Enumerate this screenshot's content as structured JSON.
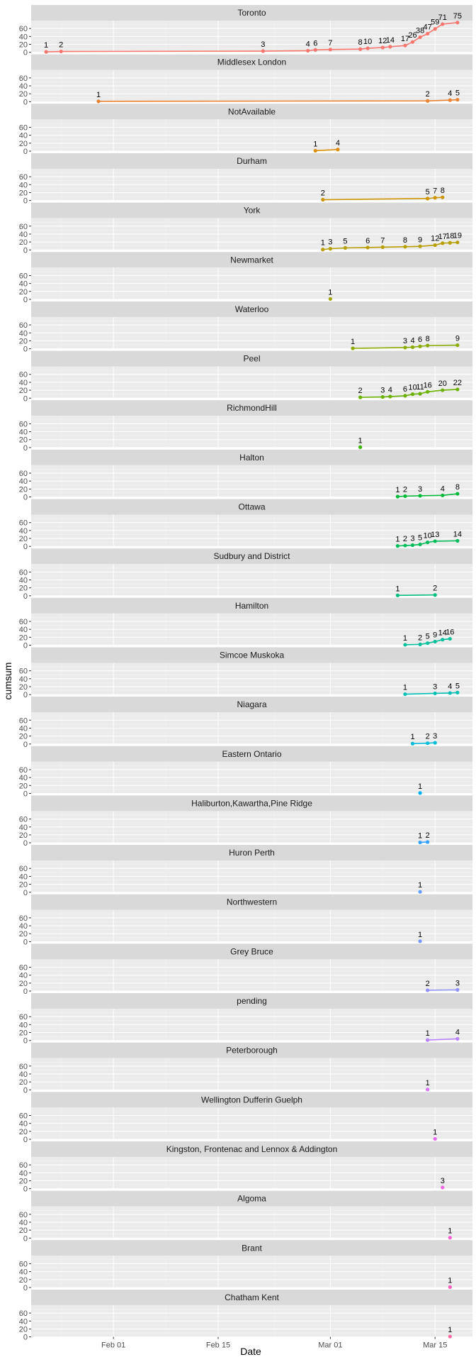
{
  "chart_data": {
    "type": "line",
    "title": "",
    "xlabel": "Date",
    "ylabel": "cumsum",
    "grid": true,
    "facet_layout": "single-column",
    "legend": "none",
    "x_domain": [
      "2020-01-21",
      "2020-03-20"
    ],
    "ylim": [
      0,
      80
    ],
    "y_ticks": [
      0,
      20,
      40,
      60
    ],
    "x_ticks": [
      {
        "date": "2020-02-01",
        "label": "Feb 01"
      },
      {
        "date": "2020-02-15",
        "label": "Feb 15"
      },
      {
        "date": "2020-03-01",
        "label": "Mar 01"
      },
      {
        "date": "2020-03-15",
        "label": "Mar 15"
      }
    ],
    "panels": [
      {
        "name": "Toronto",
        "color": "#F8766D",
        "points": [
          [
            "2020-01-23",
            1
          ],
          [
            "2020-01-25",
            2
          ],
          [
            "2020-02-21",
            3
          ],
          [
            "2020-02-27",
            4
          ],
          [
            "2020-02-28",
            6
          ],
          [
            "2020-03-01",
            7
          ],
          [
            "2020-03-05",
            8
          ],
          [
            "2020-03-06",
            10
          ],
          [
            "2020-03-08",
            12
          ],
          [
            "2020-03-09",
            14
          ],
          [
            "2020-03-11",
            17
          ],
          [
            "2020-03-12",
            26
          ],
          [
            "2020-03-13",
            38
          ],
          [
            "2020-03-14",
            47
          ],
          [
            "2020-03-15",
            59
          ],
          [
            "2020-03-16",
            71
          ],
          [
            "2020-03-18",
            75
          ]
        ]
      },
      {
        "name": "Middlesex London",
        "color": "#EA8331",
        "points": [
          [
            "2020-01-30",
            1
          ],
          [
            "2020-03-14",
            2
          ],
          [
            "2020-03-17",
            4
          ],
          [
            "2020-03-18",
            5
          ]
        ]
      },
      {
        "name": "NotAvailable",
        "color": "#DC8D00",
        "points": [
          [
            "2020-02-28",
            1
          ],
          [
            "2020-03-02",
            4
          ]
        ]
      },
      {
        "name": "Durham",
        "color": "#CC9500",
        "points": [
          [
            "2020-02-29",
            2
          ],
          [
            "2020-03-14",
            5
          ],
          [
            "2020-03-15",
            7
          ],
          [
            "2020-03-16",
            8
          ]
        ]
      },
      {
        "name": "York",
        "color": "#B79F00",
        "points": [
          [
            "2020-02-29",
            1
          ],
          [
            "2020-03-01",
            3
          ],
          [
            "2020-03-03",
            5
          ],
          [
            "2020-03-06",
            6
          ],
          [
            "2020-03-08",
            7
          ],
          [
            "2020-03-11",
            8
          ],
          [
            "2020-03-13",
            9
          ],
          [
            "2020-03-15",
            12
          ],
          [
            "2020-03-16",
            17
          ],
          [
            "2020-03-17",
            18
          ],
          [
            "2020-03-18",
            19
          ]
        ]
      },
      {
        "name": "Newmarket",
        "color": "#A3A500",
        "points": [
          [
            "2020-03-01",
            1
          ]
        ]
      },
      {
        "name": "Waterloo",
        "color": "#8AAB00",
        "points": [
          [
            "2020-03-04",
            1
          ],
          [
            "2020-03-11",
            3
          ],
          [
            "2020-03-12",
            4
          ],
          [
            "2020-03-13",
            6
          ],
          [
            "2020-03-14",
            8
          ],
          [
            "2020-03-18",
            9
          ]
        ]
      },
      {
        "name": "Peel",
        "color": "#6BB100",
        "points": [
          [
            "2020-03-05",
            2
          ],
          [
            "2020-03-08",
            3
          ],
          [
            "2020-03-09",
            4
          ],
          [
            "2020-03-11",
            6
          ],
          [
            "2020-03-12",
            10
          ],
          [
            "2020-03-13",
            11
          ],
          [
            "2020-03-14",
            16
          ],
          [
            "2020-03-16",
            20
          ],
          [
            "2020-03-18",
            22
          ]
        ]
      },
      {
        "name": "RichmondHill",
        "color": "#39B600",
        "points": [
          [
            "2020-03-05",
            1
          ]
        ]
      },
      {
        "name": "Halton",
        "color": "#00BA38",
        "points": [
          [
            "2020-03-10",
            1
          ],
          [
            "2020-03-11",
            2
          ],
          [
            "2020-03-13",
            3
          ],
          [
            "2020-03-16",
            4
          ],
          [
            "2020-03-18",
            8
          ]
        ]
      },
      {
        "name": "Ottawa",
        "color": "#00BD5C",
        "points": [
          [
            "2020-03-10",
            1
          ],
          [
            "2020-03-11",
            2
          ],
          [
            "2020-03-12",
            3
          ],
          [
            "2020-03-13",
            5
          ],
          [
            "2020-03-14",
            10
          ],
          [
            "2020-03-15",
            13
          ],
          [
            "2020-03-18",
            14
          ]
        ]
      },
      {
        "name": "Sudbury and District",
        "color": "#00BF7D",
        "points": [
          [
            "2020-03-10",
            1
          ],
          [
            "2020-03-15",
            2
          ]
        ]
      },
      {
        "name": "Hamilton",
        "color": "#00C19A",
        "points": [
          [
            "2020-03-11",
            1
          ],
          [
            "2020-03-13",
            2
          ],
          [
            "2020-03-14",
            5
          ],
          [
            "2020-03-15",
            9
          ],
          [
            "2020-03-16",
            14
          ],
          [
            "2020-03-17",
            16
          ]
        ]
      },
      {
        "name": "Simcoe Muskoka",
        "color": "#00C0B5",
        "points": [
          [
            "2020-03-11",
            1
          ],
          [
            "2020-03-15",
            3
          ],
          [
            "2020-03-17",
            4
          ],
          [
            "2020-03-18",
            5
          ]
        ]
      },
      {
        "name": "Niagara",
        "color": "#00BCD8",
        "points": [
          [
            "2020-03-12",
            1
          ],
          [
            "2020-03-14",
            2
          ],
          [
            "2020-03-15",
            3
          ]
        ]
      },
      {
        "name": "Eastern Ontario",
        "color": "#00B0F6",
        "points": [
          [
            "2020-03-13",
            1
          ]
        ]
      },
      {
        "name": "Haliburton,Kawartha,Pine Ridge",
        "color": "#35A2FF",
        "points": [
          [
            "2020-03-13",
            1
          ],
          [
            "2020-03-14",
            2
          ]
        ]
      },
      {
        "name": "Huron Perth",
        "color": "#619CFF",
        "points": [
          [
            "2020-03-13",
            1
          ]
        ]
      },
      {
        "name": "Northwestern",
        "color": "#7A97FF",
        "points": [
          [
            "2020-03-13",
            1
          ]
        ]
      },
      {
        "name": "Grey Bruce",
        "color": "#8F91FF",
        "points": [
          [
            "2020-03-14",
            2
          ],
          [
            "2020-03-18",
            3
          ]
        ]
      },
      {
        "name": "pending",
        "color": "#B983FF",
        "points": [
          [
            "2020-03-14",
            1
          ],
          [
            "2020-03-18",
            4
          ]
        ]
      },
      {
        "name": "Peterborough",
        "color": "#DB72FB",
        "points": [
          [
            "2020-03-14",
            1
          ]
        ]
      },
      {
        "name": "Wellington Dufferin Guelph",
        "color": "#E76BF3",
        "points": [
          [
            "2020-03-15",
            1
          ]
        ]
      },
      {
        "name": "Kingston, Frontenac and Lennox & Addington",
        "color": "#F564E3",
        "points": [
          [
            "2020-03-16",
            3
          ]
        ]
      },
      {
        "name": "Algoma",
        "color": "#FD61D1",
        "points": [
          [
            "2020-03-17",
            1
          ]
        ]
      },
      {
        "name": "Brant",
        "color": "#FF62BC",
        "points": [
          [
            "2020-03-17",
            1
          ]
        ]
      },
      {
        "name": "Chatham Kent",
        "color": "#FF67A4",
        "points": [
          [
            "2020-03-17",
            1
          ]
        ]
      }
    ]
  }
}
